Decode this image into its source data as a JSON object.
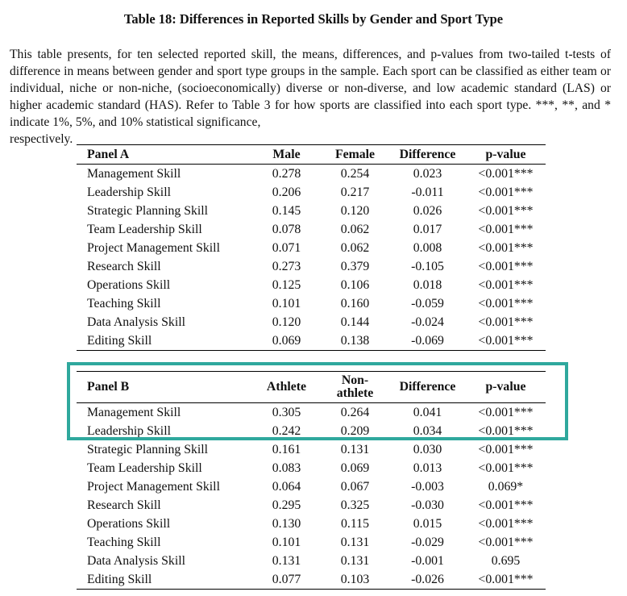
{
  "title": "Table 18: Differences in Reported Skills by Gender and Sport Type",
  "intro": {
    "text": "This table presents, for ten selected reported skill, the means, differences, and p-values from two-tailed t-tests of difference in means between gender and sport type groups in the sample. Each sport can be classified as either team or individual, niche or non-niche, (socioeconomically) diverse or non-diverse, and low academic standard (LAS) or higher academic standard (HAS). Refer to Table 3 for how sports are classified into each sport type. ***, **, and * indicate 1%, 5%, and 10% statistical significance,",
    "last_line": "respectively."
  },
  "panel_a": {
    "headers": [
      "Panel A",
      "Male",
      "Female",
      "Difference",
      "p-value"
    ],
    "rows": [
      [
        "Management Skill",
        "0.278",
        "0.254",
        "0.023",
        "<0.001***"
      ],
      [
        "Leadership Skill",
        "0.206",
        "0.217",
        "-0.011",
        "<0.001***"
      ],
      [
        "Strategic Planning Skill",
        "0.145",
        "0.120",
        "0.026",
        "<0.001***"
      ],
      [
        "Team Leadership Skill",
        "0.078",
        "0.062",
        "0.017",
        "<0.001***"
      ],
      [
        "Project Management Skill",
        "0.071",
        "0.062",
        "0.008",
        "<0.001***"
      ],
      [
        "Research Skill",
        "0.273",
        "0.379",
        "-0.105",
        "<0.001***"
      ],
      [
        "Operations Skill",
        "0.125",
        "0.106",
        "0.018",
        "<0.001***"
      ],
      [
        "Teaching Skill",
        "0.101",
        "0.160",
        "-0.059",
        "<0.001***"
      ],
      [
        "Data Analysis Skill",
        "0.120",
        "0.144",
        "-0.024",
        "<0.001***"
      ],
      [
        "Editing Skill",
        "0.069",
        "0.138",
        "-0.069",
        "<0.001***"
      ]
    ]
  },
  "panel_b": {
    "headers": [
      "Panel B",
      "Athlete",
      "Non-athlete",
      "Difference",
      "p-value"
    ],
    "header_line1": "Non-",
    "header_line2": "athlete",
    "rows": [
      [
        "Management Skill",
        "0.305",
        "0.264",
        "0.041",
        "<0.001***"
      ],
      [
        "Leadership Skill",
        "0.242",
        "0.209",
        "0.034",
        "<0.001***"
      ],
      [
        "Strategic Planning Skill",
        "0.161",
        "0.131",
        "0.030",
        "<0.001***"
      ],
      [
        "Team Leadership Skill",
        "0.083",
        "0.069",
        "0.013",
        "<0.001***"
      ],
      [
        "Project Management Skill",
        "0.064",
        "0.067",
        "-0.003",
        "0.069*"
      ],
      [
        "Research Skill",
        "0.295",
        "0.325",
        "-0.030",
        "<0.001***"
      ],
      [
        "Operations Skill",
        "0.130",
        "0.115",
        "0.015",
        "<0.001***"
      ],
      [
        "Teaching Skill",
        "0.101",
        "0.131",
        "-0.029",
        "<0.001***"
      ],
      [
        "Data Analysis Skill",
        "0.131",
        "0.131",
        "-0.001",
        "0.695"
      ],
      [
        "Editing Skill",
        "0.077",
        "0.103",
        "-0.026",
        "<0.001***"
      ]
    ]
  },
  "highlight_color": "#2fa89d"
}
